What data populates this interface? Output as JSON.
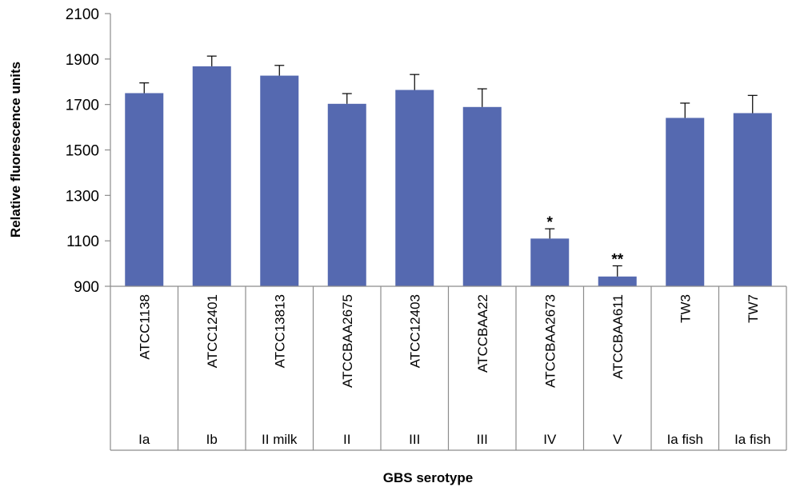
{
  "chart_data": {
    "type": "bar",
    "title": "",
    "xlabel": "GBS serotype",
    "ylabel": "Relative fluorescence units",
    "ylim": [
      900,
      2100
    ],
    "yticks": [
      900,
      1100,
      1300,
      1500,
      1700,
      1900,
      2100
    ],
    "grid": false,
    "legend": "none",
    "bar_color": "#5569b0",
    "categories": [
      "ATCC1138",
      "ATCC12401",
      "ATCC13813",
      "ATCCBAA2675",
      "ATCC12403",
      "ATCCBAA22",
      "ATCCBAA2673",
      "ATCCBAA611",
      "TW3",
      "TW7"
    ],
    "groups": [
      "Ia",
      "Ib",
      "II milk",
      "II",
      "III",
      "III",
      "IV",
      "V",
      "Ia fish",
      "Ia fish"
    ],
    "values": [
      1750,
      1868,
      1827,
      1703,
      1764,
      1689,
      1110,
      943,
      1641,
      1662
    ],
    "errors": [
      45,
      45,
      45,
      45,
      68,
      80,
      43,
      47,
      65,
      78
    ],
    "annotations": [
      "",
      "",
      "",
      "",
      "",
      "",
      "*",
      "**",
      "",
      ""
    ]
  }
}
